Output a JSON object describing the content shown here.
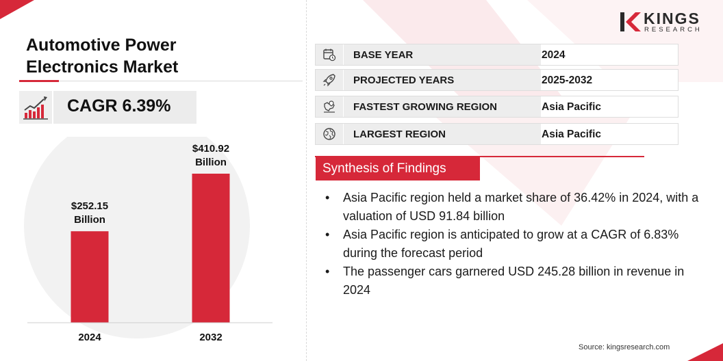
{
  "title": {
    "line1": "Automotive Power",
    "line2": "Electronics Market"
  },
  "cagr": {
    "label": "CAGR 6.39%"
  },
  "brand": {
    "name": "KINGS",
    "sub": "RESEARCH",
    "source": "Source: kingsresearch.com",
    "accent_color": "#d62839"
  },
  "info_rows": [
    {
      "label": "BASE YEAR",
      "value": "2024",
      "icon": "calendar-icon"
    },
    {
      "label": "PROJECTED YEARS",
      "value": "2025-2032",
      "icon": "rocket-icon"
    },
    {
      "label": "FASTEST GROWING REGION",
      "value": "Asia Pacific",
      "icon": "region-map-icon"
    },
    {
      "label": "LARGEST REGION",
      "value": "Asia Pacific",
      "icon": "globe-icon"
    }
  ],
  "synthesis": {
    "heading": "Synthesis of Findings",
    "bullets": [
      "Asia Pacific region held a market share of 36.42% in 2024, with a valuation of USD 91.84 billion",
      "Asia Pacific region is anticipated to grow at a CAGR of 6.83% during the forecast period",
      "The passenger cars garnered USD 245.28 billion in revenue in 2024"
    ]
  },
  "chart_data": {
    "type": "bar",
    "categories": [
      "2024",
      "2032"
    ],
    "values": [
      252.15,
      410.92
    ],
    "data_labels": [
      [
        "$252.15",
        "Billion"
      ],
      [
        "$410.92",
        "Billion"
      ]
    ],
    "title": "",
    "xlabel": "",
    "ylabel": "",
    "ylim": [
      0,
      410.92
    ],
    "grid": false,
    "bar_color": "#d62839"
  }
}
